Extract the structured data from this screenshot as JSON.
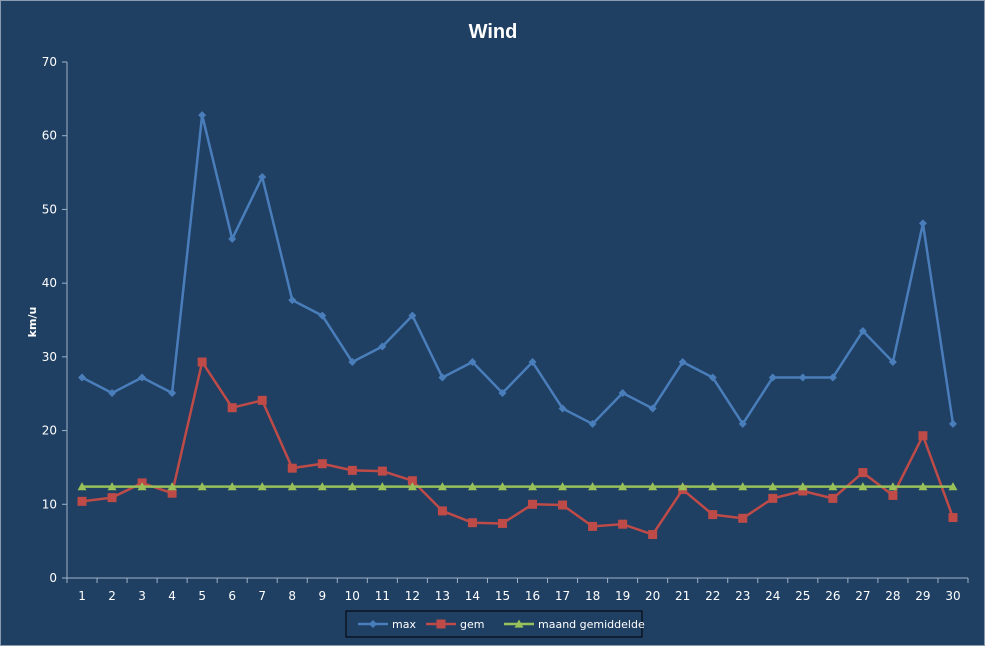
{
  "chart_data": {
    "type": "line",
    "title": "Wind",
    "xlabel": "",
    "ylabel": "km/u",
    "ylim": [
      0,
      70
    ],
    "yticks": [
      0,
      10,
      20,
      30,
      40,
      50,
      60,
      70
    ],
    "grid": false,
    "legend_position": "bottom",
    "categories": [
      "1",
      "2",
      "3",
      "4",
      "5",
      "6",
      "7",
      "8",
      "9",
      "10",
      "11",
      "12",
      "13",
      "14",
      "15",
      "16",
      "17",
      "18",
      "19",
      "20",
      "21",
      "22",
      "23",
      "24",
      "25",
      "26",
      "27",
      "28",
      "29",
      "30"
    ],
    "series": [
      {
        "name": "max",
        "color": "#4a7ebb",
        "marker": "diamond",
        "values": [
          27.2,
          25.1,
          27.2,
          25.1,
          62.8,
          46.0,
          54.4,
          37.7,
          35.6,
          29.3,
          31.4,
          35.6,
          27.2,
          29.3,
          25.1,
          29.3,
          23.0,
          20.9,
          25.1,
          23.0,
          29.3,
          27.2,
          20.9,
          27.2,
          27.2,
          27.2,
          33.5,
          29.3,
          48.1,
          20.9
        ]
      },
      {
        "name": "gem",
        "color": "#be4b48",
        "marker": "square",
        "values": [
          10.4,
          10.9,
          12.9,
          11.5,
          29.3,
          23.1,
          24.1,
          14.9,
          15.5,
          14.6,
          14.5,
          13.2,
          9.1,
          7.5,
          7.4,
          10.0,
          9.9,
          7.0,
          7.3,
          5.9,
          12.0,
          8.6,
          8.1,
          10.8,
          11.8,
          10.8,
          14.3,
          11.2,
          19.3,
          8.2
        ]
      },
      {
        "name": "maand gemiddelde",
        "color": "#98c15a",
        "marker": "triangle",
        "values": [
          12.4,
          12.4,
          12.4,
          12.4,
          12.4,
          12.4,
          12.4,
          12.4,
          12.4,
          12.4,
          12.4,
          12.4,
          12.4,
          12.4,
          12.4,
          12.4,
          12.4,
          12.4,
          12.4,
          12.4,
          12.4,
          12.4,
          12.4,
          12.4,
          12.4,
          12.4,
          12.4,
          12.4,
          12.4,
          12.4
        ]
      }
    ]
  }
}
